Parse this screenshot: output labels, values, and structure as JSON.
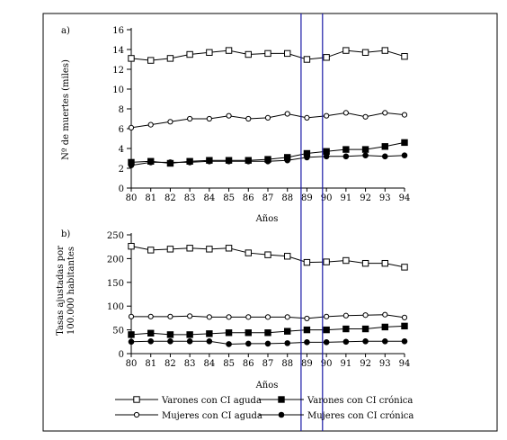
{
  "chart_data": [
    {
      "type": "line",
      "panel_label": "a)",
      "xlabel": "Años",
      "ylabel": "Nº de muertes (miles)",
      "x": [
        "80",
        "81",
        "82",
        "83",
        "84",
        "85",
        "86",
        "87",
        "88",
        "89",
        "90",
        "91",
        "92",
        "93",
        "94"
      ],
      "ylim": [
        0,
        16
      ],
      "yticks": [
        "0",
        "2",
        "4",
        "6",
        "8",
        "10",
        "12",
        "14",
        "16"
      ],
      "grid": false,
      "highlight_x": [
        "88.7",
        "89.8"
      ],
      "series": [
        {
          "name": "Varones con CI aguda",
          "marker": "open-square",
          "values": [
            13.1,
            12.9,
            13.1,
            13.5,
            13.7,
            13.9,
            13.5,
            13.6,
            13.6,
            13.0,
            13.2,
            13.9,
            13.7,
            13.9,
            13.3
          ]
        },
        {
          "name": "Mujeres con CI aguda",
          "marker": "open-circle",
          "values": [
            6.1,
            6.4,
            6.7,
            7.0,
            7.0,
            7.3,
            7.0,
            7.1,
            7.5,
            7.1,
            7.3,
            7.6,
            7.2,
            7.6,
            7.4
          ]
        },
        {
          "name": "Varones con CI crónica",
          "marker": "filled-square",
          "values": [
            2.6,
            2.7,
            2.5,
            2.7,
            2.8,
            2.8,
            2.8,
            2.9,
            3.1,
            3.5,
            3.7,
            3.9,
            3.9,
            4.2,
            4.6
          ]
        },
        {
          "name": "Mujeres con CI crónica",
          "marker": "filled-circle",
          "values": [
            2.3,
            2.6,
            2.6,
            2.6,
            2.7,
            2.7,
            2.7,
            2.7,
            2.8,
            3.1,
            3.2,
            3.2,
            3.3,
            3.2,
            3.3
          ]
        }
      ]
    },
    {
      "type": "line",
      "panel_label": "b)",
      "xlabel": "Años",
      "ylabel_lines": [
        "Tasas ajustadas por",
        "100.000 habitantes"
      ],
      "x": [
        "80",
        "81",
        "82",
        "83",
        "84",
        "85",
        "86",
        "87",
        "88",
        "89",
        "90",
        "91",
        "92",
        "93",
        "94"
      ],
      "ylim": [
        0,
        250
      ],
      "yticks": [
        "0",
        "50",
        "100",
        "150",
        "200",
        "250"
      ],
      "grid": false,
      "highlight_x": [
        "88.7",
        "89.8"
      ],
      "series": [
        {
          "name": "Varones con CI aguda",
          "marker": "open-square",
          "values": [
            226,
            218,
            220,
            222,
            220,
            222,
            212,
            208,
            205,
            192,
            193,
            196,
            190,
            190,
            182
          ]
        },
        {
          "name": "Mujeres con CI aguda",
          "marker": "open-circle",
          "values": [
            78,
            78,
            78,
            79,
            77,
            77,
            77,
            77,
            77,
            74,
            78,
            80,
            81,
            82,
            76
          ]
        },
        {
          "name": "Varones con CI crónica",
          "marker": "filled-square",
          "values": [
            40,
            43,
            40,
            40,
            42,
            44,
            44,
            44,
            47,
            50,
            50,
            52,
            52,
            56,
            58
          ]
        },
        {
          "name": "Mujeres con CI crónica",
          "marker": "filled-circle",
          "values": [
            25,
            26,
            26,
            26,
            26,
            20,
            21,
            21,
            22,
            24,
            24,
            25,
            26,
            26,
            26
          ]
        }
      ]
    }
  ],
  "legend": {
    "placement": "bottom",
    "entries": [
      {
        "label": "Varones con CI aguda",
        "marker": "open-square"
      },
      {
        "label": "Varones con CI crónica",
        "marker": "filled-square"
      },
      {
        "label": "Mujeres con CI aguda",
        "marker": "open-circle"
      },
      {
        "label": "Mujeres con CI crónica",
        "marker": "filled-circle"
      }
    ]
  },
  "colors": {
    "ink": "#000000",
    "highlight": "#1a1aa6"
  }
}
